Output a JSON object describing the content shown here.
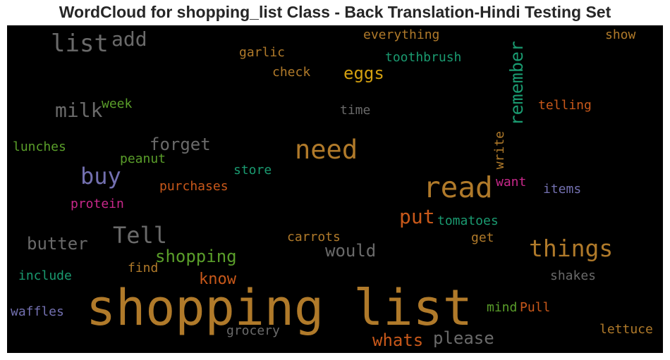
{
  "title": "WordCloud for shopping_list Class - Back Translation-Hindi Testing Set",
  "colors": {
    "gold": "#b07a2a",
    "gray": "#6a6a6a",
    "orange": "#c8581a",
    "green": "#5a9e2a",
    "teal": "#1a9a70",
    "purple": "#7370b0",
    "pink": "#c8288a",
    "yellow": "#d4a010"
  },
  "words": [
    {
      "text": "shopping list",
      "color": "gold"
    },
    {
      "text": "read",
      "color": "gold"
    },
    {
      "text": "need",
      "color": "gold"
    },
    {
      "text": "things",
      "color": "gold"
    },
    {
      "text": "Tell",
      "color": "gray"
    },
    {
      "text": "buy",
      "color": "purple"
    },
    {
      "text": "list",
      "color": "gray"
    },
    {
      "text": "milk",
      "color": "gray"
    },
    {
      "text": "add",
      "color": "gray"
    },
    {
      "text": "remember",
      "color": "teal"
    },
    {
      "text": "put",
      "color": "orange"
    },
    {
      "text": "eggs",
      "color": "yellow"
    },
    {
      "text": "forget",
      "color": "gray"
    },
    {
      "text": "shopping",
      "color": "green"
    },
    {
      "text": "would",
      "color": "gray"
    },
    {
      "text": "butter",
      "color": "gray"
    },
    {
      "text": "please",
      "color": "gray"
    },
    {
      "text": "whats",
      "color": "orange"
    },
    {
      "text": "know",
      "color": "orange"
    },
    {
      "text": "everything",
      "color": "gold"
    },
    {
      "text": "toothbrush",
      "color": "teal"
    },
    {
      "text": "garlic",
      "color": "gold"
    },
    {
      "text": "check",
      "color": "gold"
    },
    {
      "text": "show",
      "color": "gold"
    },
    {
      "text": "telling",
      "color": "orange"
    },
    {
      "text": "time",
      "color": "gray"
    },
    {
      "text": "week",
      "color": "green"
    },
    {
      "text": "lunches",
      "color": "green"
    },
    {
      "text": "peanut",
      "color": "green"
    },
    {
      "text": "store",
      "color": "teal"
    },
    {
      "text": "write",
      "color": "gold"
    },
    {
      "text": "want",
      "color": "pink"
    },
    {
      "text": "items",
      "color": "purple"
    },
    {
      "text": "purchases",
      "color": "orange"
    },
    {
      "text": "protein",
      "color": "pink"
    },
    {
      "text": "tomatoes",
      "color": "teal"
    },
    {
      "text": "carrots",
      "color": "gold"
    },
    {
      "text": "get",
      "color": "gold"
    },
    {
      "text": "find",
      "color": "gold"
    },
    {
      "text": "include",
      "color": "teal"
    },
    {
      "text": "shakes",
      "color": "gray"
    },
    {
      "text": "waffles",
      "color": "purple"
    },
    {
      "text": "grocery",
      "color": "gray"
    },
    {
      "text": "mind",
      "color": "green"
    },
    {
      "text": "Pull",
      "color": "orange"
    },
    {
      "text": "lettuce",
      "color": "gold"
    }
  ]
}
